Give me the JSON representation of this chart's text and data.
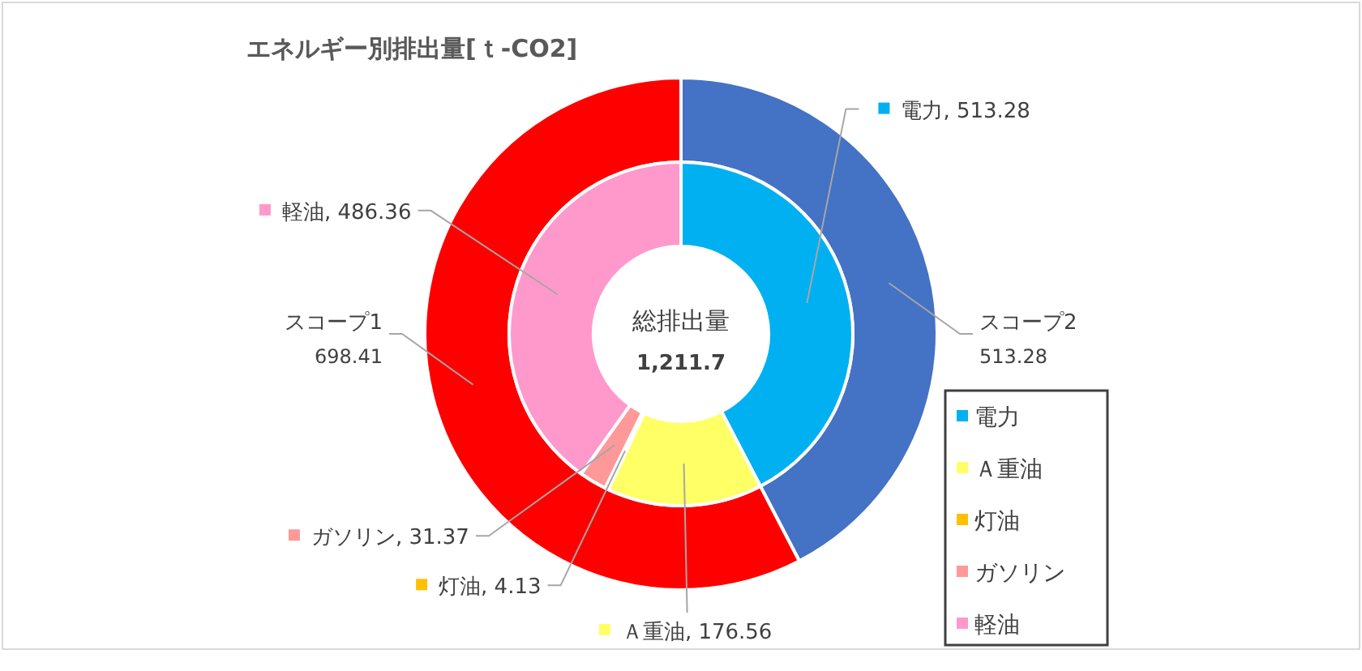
{
  "chart_data": [
    {
      "type": "donut",
      "title": "エネルギー別排出量[ｔ-CO2]",
      "categories": [
        "スコープ2",
        "スコープ1"
      ],
      "values": [
        513.28,
        698.41
      ],
      "colors": [
        "#4472c4",
        "#ff0000"
      ],
      "data_labels": true
    },
    {
      "type": "donut",
      "categories": [
        "電力",
        "Ａ重油",
        "灯油",
        "ガソリン",
        "軽油"
      ],
      "values": [
        513.28,
        176.56,
        4.13,
        31.37,
        486.36
      ],
      "colors": [
        "#00b0f0",
        "#ffff66",
        "#ffc000",
        "#ff9999",
        "#ff99cc"
      ],
      "value_labels": [
        "電力, 513.28",
        "Ａ重油, 176.56",
        "灯油, 4.13",
        "ガソリン, 31.37",
        "軽油, 486.36"
      ],
      "legend": "bottom right",
      "annotations": [
        "総排出量",
        "1,211.7"
      ]
    }
  ]
}
